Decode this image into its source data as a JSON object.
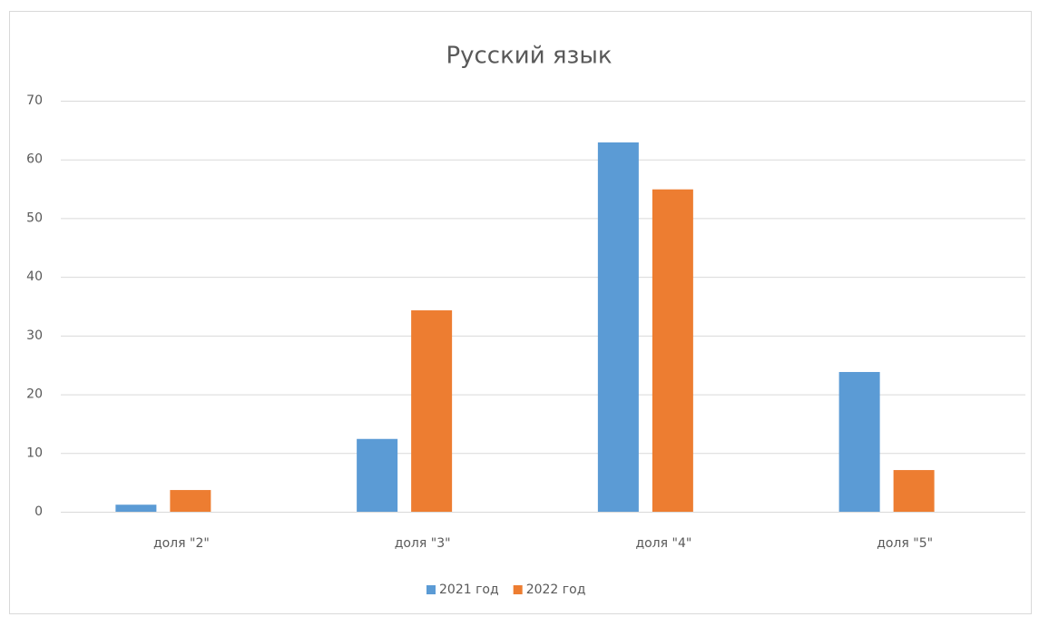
{
  "chart_data": {
    "type": "bar",
    "title": "Русский язык",
    "categories": [
      "доля \"2\"",
      "доля \"3\"",
      "доля \"4\"",
      "доля \"5\""
    ],
    "series": [
      {
        "name": "2021 год",
        "color": "#5b9bd5",
        "values": [
          1.2,
          12.4,
          62.9,
          23.8
        ]
      },
      {
        "name": "2022 год",
        "color": "#ed7d31",
        "values": [
          3.7,
          34.3,
          54.9,
          7.1
        ]
      }
    ],
    "ylim": [
      0,
      70
    ],
    "yticks": [
      0,
      10,
      20,
      30,
      40,
      50,
      60,
      70
    ],
    "grid": true,
    "legend": "bottom"
  }
}
